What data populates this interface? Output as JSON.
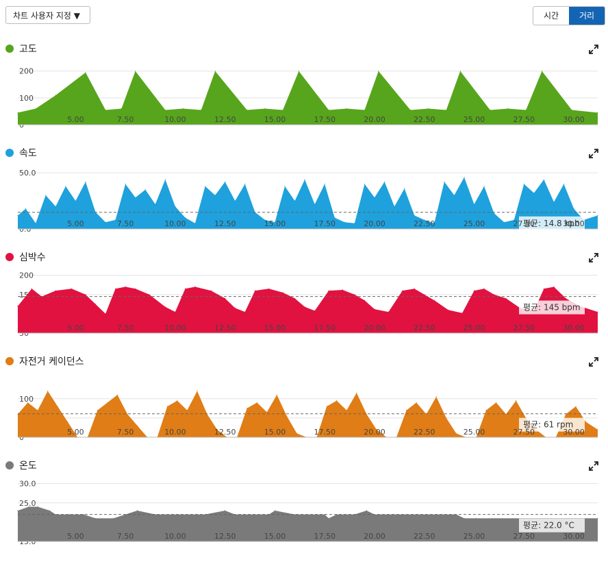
{
  "toolbar": {
    "customize_label": "차트 사용자 지정 ▼",
    "toggle_time": "시간",
    "toggle_distance": "거리",
    "active": "거리"
  },
  "x_ticks": [
    "5.00",
    "7.50",
    "10.00",
    "12.50",
    "15.00",
    "17.50",
    "20.00",
    "22.50",
    "25.00",
    "27.50",
    "30.00"
  ],
  "charts": [
    {
      "title": "고도",
      "color": "#57a51c",
      "expand_icon": "expand-icon",
      "chart_data": {
        "type": "area",
        "title": "고도",
        "x_range": [
          2.1,
          31.2
        ],
        "ylim": [
          0,
          230
        ],
        "yticks": [
          "200",
          "100",
          "0"
        ],
        "ytick_values": [
          200,
          100,
          0
        ],
        "x": [
          2.1,
          3.0,
          4.0,
          5.5,
          6.5,
          7.3,
          8.0,
          9.5,
          10.4,
          11.3,
          12.0,
          13.6,
          14.5,
          15.4,
          16.2,
          17.7,
          18.6,
          19.5,
          20.2,
          21.8,
          22.7,
          23.6,
          24.3,
          25.8,
          26.7,
          27.6,
          28.4,
          29.9,
          31.2
        ],
        "y": [
          45,
          60,
          110,
          195,
          55,
          60,
          200,
          55,
          60,
          55,
          200,
          55,
          60,
          55,
          200,
          55,
          60,
          55,
          200,
          55,
          60,
          55,
          200,
          55,
          60,
          55,
          200,
          55,
          45
        ],
        "avg": null
      }
    },
    {
      "title": "속도",
      "color": "#1ea1dc",
      "expand_icon": "expand-icon",
      "chart_data": {
        "type": "area",
        "title": "속도",
        "x_range": [
          2.1,
          31.2
        ],
        "ylim": [
          0,
          55
        ],
        "yticks": [
          "50.0",
          "0.0"
        ],
        "ytick_values": [
          50,
          0
        ],
        "x": [
          2.1,
          2.5,
          3.0,
          3.5,
          4.0,
          4.5,
          5.0,
          5.5,
          6.0,
          6.5,
          7.0,
          7.5,
          8.0,
          8.5,
          9.0,
          9.5,
          10.0,
          10.5,
          11.0,
          11.5,
          12.0,
          12.5,
          13.0,
          13.5,
          14.0,
          14.5,
          15.0,
          15.5,
          16.0,
          16.5,
          17.0,
          17.5,
          18.0,
          18.5,
          19.0,
          19.5,
          20.0,
          20.5,
          21.0,
          21.5,
          22.0,
          22.5,
          23.0,
          23.5,
          24.0,
          24.5,
          25.0,
          25.5,
          26.0,
          26.5,
          27.0,
          27.5,
          28.0,
          28.5,
          29.0,
          29.5,
          30.0,
          30.5,
          31.2
        ],
        "y": [
          12,
          18,
          5,
          30,
          20,
          38,
          25,
          42,
          15,
          6,
          8,
          40,
          28,
          35,
          22,
          44,
          20,
          10,
          5,
          38,
          30,
          42,
          25,
          40,
          15,
          8,
          6,
          38,
          25,
          44,
          22,
          40,
          10,
          6,
          5,
          40,
          28,
          42,
          20,
          36,
          12,
          8,
          5,
          42,
          30,
          46,
          22,
          38,
          14,
          6,
          8,
          40,
          32,
          44,
          24,
          40,
          18,
          8,
          12
        ],
        "avg": 14.8,
        "avg_label": "평균: 14.8 kph"
      }
    },
    {
      "title": "심박수",
      "color": "#e11240",
      "expand_icon": "expand-icon",
      "chart_data": {
        "type": "area",
        "title": "심박수",
        "x_range": [
          2.1,
          31.2
        ],
        "ylim": [
          50,
          210
        ],
        "yticks": [
          "200",
          "150",
          "100",
          "50"
        ],
        "ytick_values": [
          200,
          150,
          100,
          50
        ],
        "x": [
          2.1,
          2.8,
          3.3,
          4.0,
          4.8,
          5.5,
          6.0,
          6.5,
          7.0,
          7.5,
          8.0,
          8.7,
          9.5,
          10.0,
          10.5,
          11.0,
          11.8,
          12.5,
          13.0,
          13.5,
          14.0,
          14.7,
          15.4,
          16.0,
          16.5,
          17.0,
          17.7,
          18.4,
          19.0,
          19.5,
          20.0,
          20.7,
          21.4,
          22.0,
          22.5,
          23.0,
          23.7,
          24.4,
          25.0,
          25.5,
          26.0,
          26.6,
          27.3,
          28.0,
          28.5,
          29.0,
          29.6,
          30.3,
          31.2
        ],
        "y": [
          120,
          165,
          145,
          160,
          165,
          150,
          125,
          100,
          165,
          170,
          165,
          150,
          118,
          105,
          165,
          170,
          160,
          140,
          115,
          105,
          160,
          165,
          155,
          140,
          118,
          108,
          160,
          162,
          150,
          135,
          112,
          105,
          160,
          165,
          150,
          135,
          110,
          102,
          160,
          165,
          150,
          140,
          115,
          108,
          165,
          170,
          140,
          120,
          105
        ],
        "avg": 145,
        "avg_label": "평균: 145 bpm"
      }
    },
    {
      "title": "자전거 케이던스",
      "color": "#e07d16",
      "expand_icon": "expand-icon",
      "chart_data": {
        "type": "area",
        "title": "자전거 케이던스",
        "x_range": [
          2.1,
          31.2
        ],
        "ylim": [
          0,
          160
        ],
        "yticks": [
          "100",
          "50",
          "0"
        ],
        "ytick_values": [
          100,
          50,
          0
        ],
        "x": [
          2.1,
          2.6,
          3.1,
          3.6,
          4.1,
          4.6,
          5.1,
          5.6,
          6.1,
          6.6,
          7.1,
          7.6,
          8.1,
          8.6,
          9.1,
          9.6,
          10.1,
          10.6,
          11.1,
          11.6,
          12.1,
          12.6,
          13.1,
          13.6,
          14.1,
          14.6,
          15.1,
          15.6,
          16.1,
          16.6,
          17.1,
          17.6,
          18.1,
          18.6,
          19.1,
          19.6,
          20.1,
          20.6,
          21.1,
          21.6,
          22.1,
          22.6,
          23.1,
          23.6,
          24.1,
          24.6,
          25.1,
          25.6,
          26.1,
          26.6,
          27.1,
          27.6,
          28.1,
          28.6,
          29.1,
          29.6,
          30.1,
          30.6,
          31.2
        ],
        "y": [
          60,
          90,
          70,
          120,
          80,
          40,
          0,
          0,
          70,
          90,
          110,
          60,
          30,
          0,
          0,
          80,
          95,
          70,
          120,
          60,
          20,
          0,
          0,
          75,
          90,
          65,
          110,
          55,
          10,
          0,
          0,
          80,
          95,
          70,
          115,
          60,
          20,
          0,
          0,
          70,
          90,
          60,
          105,
          50,
          10,
          0,
          0,
          70,
          90,
          60,
          95,
          50,
          20,
          0,
          0,
          60,
          80,
          40,
          20
        ],
        "avg": 61,
        "avg_label": "평균: 61 rpm"
      }
    },
    {
      "title": "온도",
      "color": "#7a7a7a",
      "expand_icon": "expand-icon",
      "chart_data": {
        "type": "area",
        "title": "온도",
        "x_range": [
          2.1,
          31.2
        ],
        "ylim": [
          15,
          31
        ],
        "yticks": [
          "30.0",
          "25.0",
          "20.0",
          "15.0"
        ],
        "ytick_values": [
          30,
          25,
          20,
          15
        ],
        "x": [
          2.1,
          2.65,
          3.1,
          3.7,
          4.0,
          4.7,
          5.4,
          6.0,
          6.9,
          7.5,
          8.1,
          9.0,
          10.8,
          11.5,
          12.5,
          13.0,
          14.7,
          15.0,
          16.0,
          17.5,
          17.7,
          18.1,
          19.0,
          19.6,
          20.0,
          24.1,
          24.5,
          25.1,
          31.2
        ],
        "y": [
          23,
          24,
          24,
          23,
          22,
          22,
          22,
          21,
          21,
          22,
          23,
          22,
          22,
          22,
          23,
          22,
          22,
          23,
          22,
          22,
          21,
          22,
          22,
          23,
          22,
          22,
          21,
          21,
          21
        ],
        "avg": 22.0,
        "avg_label": "평균: 22.0 °C"
      }
    }
  ]
}
